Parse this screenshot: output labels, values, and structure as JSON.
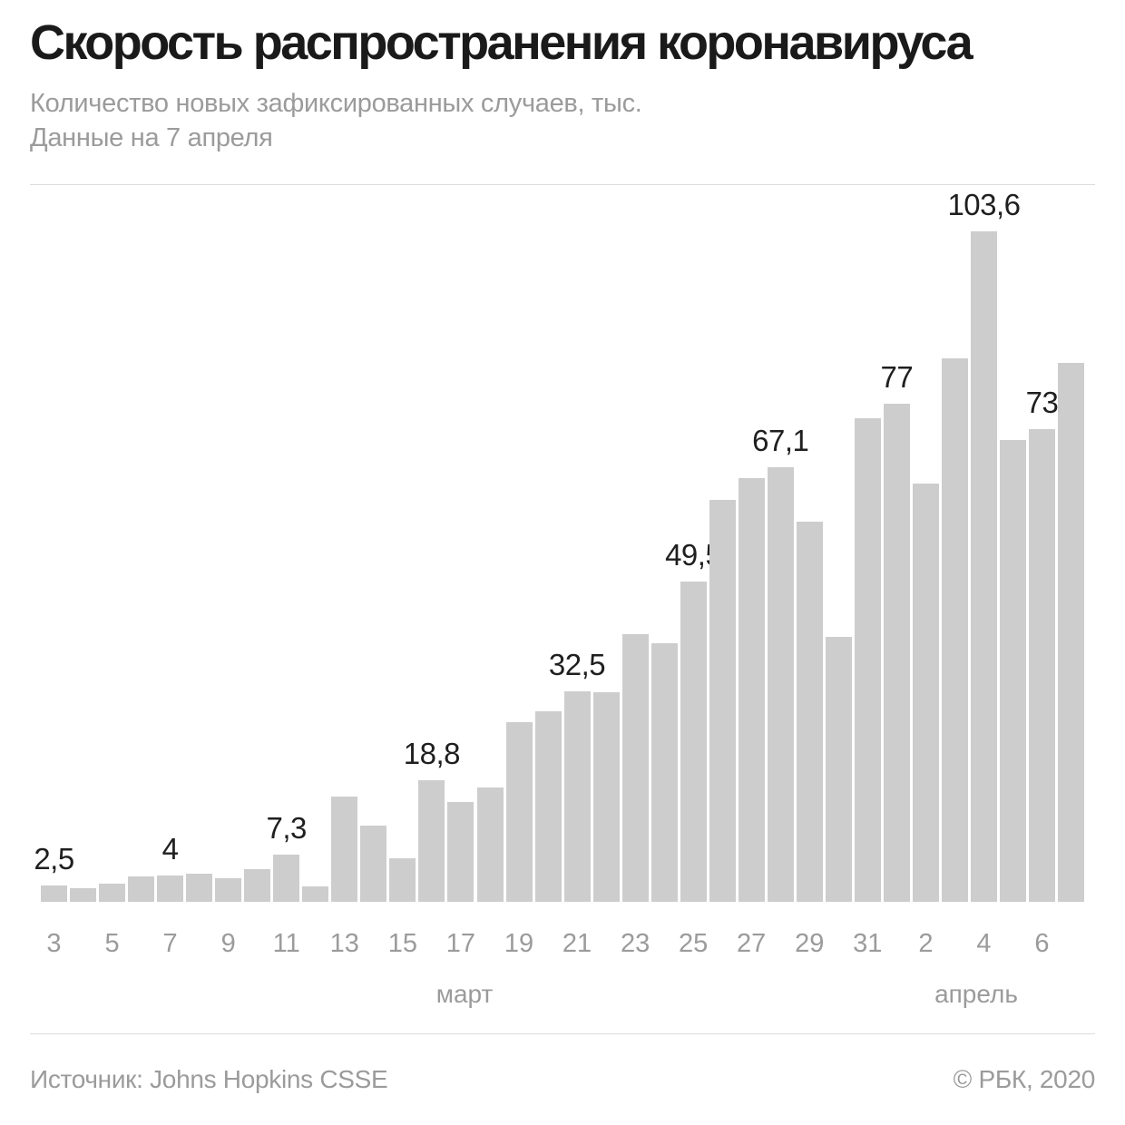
{
  "header": {
    "title": "Скорость распространения коронавируса",
    "subtitle": "Количество новых зафиксированных случаев, тыс.",
    "note": "Данные на 7 апреля"
  },
  "footer": {
    "source": "Источник: Johns Hopkins CSSE",
    "copyright": "© РБК, 2020"
  },
  "colors": {
    "background": "#ffffff",
    "bar": "#cdcdcd",
    "title_text": "#1a1a1a",
    "value_label_text": "#1f1f1f",
    "muted_text": "#9b9b9b",
    "divider": "#dcdcdc"
  },
  "chart_data": {
    "type": "bar",
    "title": "Скорость распространения коронавируса",
    "subtitle": "Количество новых зафиксированных случаев, тыс.",
    "as_of": "Данные на 7 апреля",
    "unit": "тыс.",
    "ylim": [
      0,
      110
    ],
    "grid": false,
    "legend": false,
    "y_axis_shown": false,
    "months": [
      {
        "label": "март",
        "days": "3–31"
      },
      {
        "label": "апрель",
        "days": "1–7"
      }
    ],
    "bars": [
      {
        "day": 3,
        "month": "март",
        "value": 2.5,
        "label": "2,5",
        "tick": "3"
      },
      {
        "day": 4,
        "month": "март",
        "value": 2.1
      },
      {
        "day": 5,
        "month": "март",
        "value": 2.8,
        "tick": "5"
      },
      {
        "day": 6,
        "month": "март",
        "value": 3.9
      },
      {
        "day": 7,
        "month": "март",
        "value": 4,
        "label": "4",
        "tick": "7"
      },
      {
        "day": 8,
        "month": "март",
        "value": 4.3
      },
      {
        "day": 9,
        "month": "март",
        "value": 3.7,
        "tick": "9"
      },
      {
        "day": 10,
        "month": "март",
        "value": 5
      },
      {
        "day": 11,
        "month": "март",
        "value": 7.3,
        "label": "7,3",
        "tick": "11"
      },
      {
        "day": 12,
        "month": "март",
        "value": 2.4
      },
      {
        "day": 13,
        "month": "март",
        "value": 16.3,
        "tick": "13"
      },
      {
        "day": 14,
        "month": "март",
        "value": 11.8
      },
      {
        "day": 15,
        "month": "март",
        "value": 6.7,
        "tick": "15"
      },
      {
        "day": 16,
        "month": "март",
        "value": 18.8,
        "label": "18,8"
      },
      {
        "day": 17,
        "month": "март",
        "value": 15.4,
        "tick": "17"
      },
      {
        "day": 18,
        "month": "март",
        "value": 17.6
      },
      {
        "day": 19,
        "month": "март",
        "value": 27.7,
        "tick": "19"
      },
      {
        "day": 20,
        "month": "март",
        "value": 29.4
      },
      {
        "day": 21,
        "month": "март",
        "value": 32.5,
        "label": "32,5",
        "tick": "21"
      },
      {
        "day": 22,
        "month": "март",
        "value": 32.4
      },
      {
        "day": 23,
        "month": "март",
        "value": 41.3,
        "tick": "23"
      },
      {
        "day": 24,
        "month": "март",
        "value": 40
      },
      {
        "day": 25,
        "month": "март",
        "value": 49.5,
        "label": "49,5",
        "tick": "25"
      },
      {
        "day": 26,
        "month": "март",
        "value": 62.1
      },
      {
        "day": 27,
        "month": "март",
        "value": 65.4,
        "tick": "27"
      },
      {
        "day": 28,
        "month": "март",
        "value": 67.1,
        "label": "67,1"
      },
      {
        "day": 29,
        "month": "март",
        "value": 58.7,
        "tick": "29"
      },
      {
        "day": 30,
        "month": "март",
        "value": 41
      },
      {
        "day": 31,
        "month": "март",
        "value": 74.7,
        "tick": "31"
      },
      {
        "day": 1,
        "month": "апрель",
        "value": 77,
        "label": "77"
      },
      {
        "day": 2,
        "month": "апрель",
        "value": 64.6,
        "tick": "2"
      },
      {
        "day": 3,
        "month": "апрель",
        "value": 84
      },
      {
        "day": 4,
        "month": "апрель",
        "value": 103.6,
        "label": "103,6",
        "tick": "4"
      },
      {
        "day": 5,
        "month": "апрель",
        "value": 71.3
      },
      {
        "day": 6,
        "month": "апрель",
        "value": 73,
        "label": "73",
        "tick": "6"
      },
      {
        "day": 7,
        "month": "апрель",
        "value": 83.3
      }
    ]
  }
}
